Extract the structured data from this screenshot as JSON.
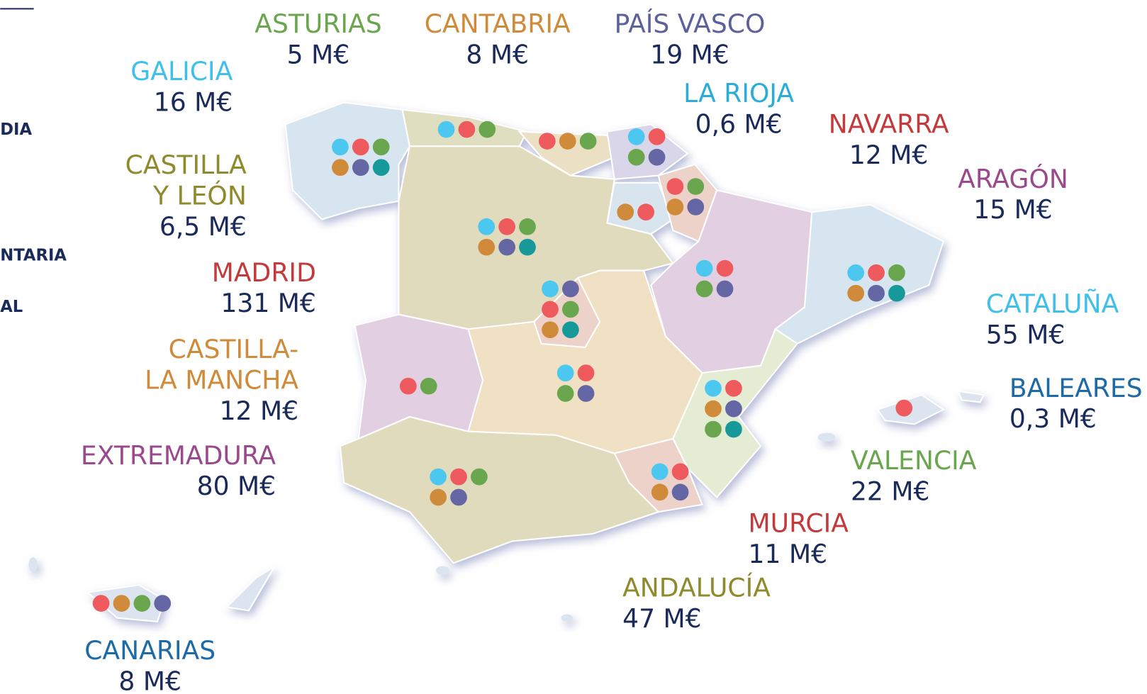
{
  "legend_fragments": [
    "DIA",
    "NTARIA",
    "AL"
  ],
  "dot_colors": {
    "cyan": "#4cc8f0",
    "red": "#ee5a5e",
    "green": "#6aa64e",
    "orange": "#cf8a3a",
    "purple": "#6467a3",
    "teal": "#17999a"
  },
  "regions": [
    {
      "name": [
        "ASTURIAS"
      ],
      "amount": "5 M€",
      "color": "#6aa64e",
      "dots": [
        "cyan",
        "red",
        "green"
      ]
    },
    {
      "name": [
        "CANTABRIA"
      ],
      "amount": "8 M€",
      "color": "#cf8a3a",
      "dots": [
        "red",
        "orange",
        "green"
      ]
    },
    {
      "name": [
        "PAÍS VASCO"
      ],
      "amount": "19 M€",
      "color": "#5e609c",
      "dots": [
        "cyan",
        "red",
        "green",
        "purple"
      ]
    },
    {
      "name": [
        "GALICIA"
      ],
      "amount": "16 M€",
      "color": "#3fc0ea",
      "dots": [
        "cyan",
        "red",
        "green",
        "orange",
        "purple",
        "teal"
      ]
    },
    {
      "name": [
        "LA RIOJA"
      ],
      "amount": "0,6 M€",
      "color": "#2cadd9",
      "dots": [
        "orange",
        "red"
      ]
    },
    {
      "name": [
        "NAVARRA"
      ],
      "amount": "12 M€",
      "color": "#c23a3c",
      "dots": [
        "red",
        "green",
        "orange",
        "purple"
      ]
    },
    {
      "name": [
        "CASTILLA",
        "Y LEÓN"
      ],
      "amount": "6,5 M€",
      "color": "#8f8a2c",
      "dots": [
        "cyan",
        "red",
        "green",
        "orange",
        "purple",
        "teal"
      ]
    },
    {
      "name": [
        "ARAGÓN"
      ],
      "amount": "15 M€",
      "color": "#9a4a8c",
      "dots": [
        "cyan",
        "red",
        "green",
        "purple"
      ]
    },
    {
      "name": [
        "MADRID"
      ],
      "amount": "131 M€",
      "color": "#c23a3c",
      "dots": [
        "cyan",
        "purple",
        "red",
        "green",
        "orange",
        "teal"
      ]
    },
    {
      "name": [
        "CATALUÑA"
      ],
      "amount": "55 M€",
      "color": "#3fc0ea",
      "dots": [
        "cyan",
        "red",
        "green",
        "orange",
        "purple",
        "teal"
      ]
    },
    {
      "name": [
        "CASTILLA-",
        "LA MANCHA"
      ],
      "amount": "12 M€",
      "color": "#cf8a3a",
      "dots": [
        "cyan",
        "red",
        "green",
        "purple"
      ]
    },
    {
      "name": [
        "EXTREMADURA"
      ],
      "amount": "80 M€",
      "color": "#9a4a8c",
      "dots": [
        "red",
        "green"
      ]
    },
    {
      "name": [
        "BALEARES"
      ],
      "amount": "0,3 M€",
      "color": "#1d6aa8",
      "dots": [
        "red"
      ]
    },
    {
      "name": [
        "VALENCIA"
      ],
      "amount": "22 M€",
      "color": "#6aa64e",
      "dots": [
        "cyan",
        "red",
        "orange",
        "purple",
        "green",
        "teal"
      ]
    },
    {
      "name": [
        "MURCIA"
      ],
      "amount": "11 M€",
      "color": "#c23a3c",
      "dots": [
        "cyan",
        "red",
        "orange",
        "purple"
      ]
    },
    {
      "name": [
        "ANDALUCÍA"
      ],
      "amount": "47 M€",
      "color": "#8f8a2c",
      "dots": [
        "cyan",
        "red",
        "green",
        "orange",
        "purple"
      ]
    },
    {
      "name": [
        "CANARIAS"
      ],
      "amount": "8 M€",
      "color": "#1d6aa8",
      "dots": [
        "red",
        "orange",
        "green",
        "purple"
      ]
    }
  ]
}
